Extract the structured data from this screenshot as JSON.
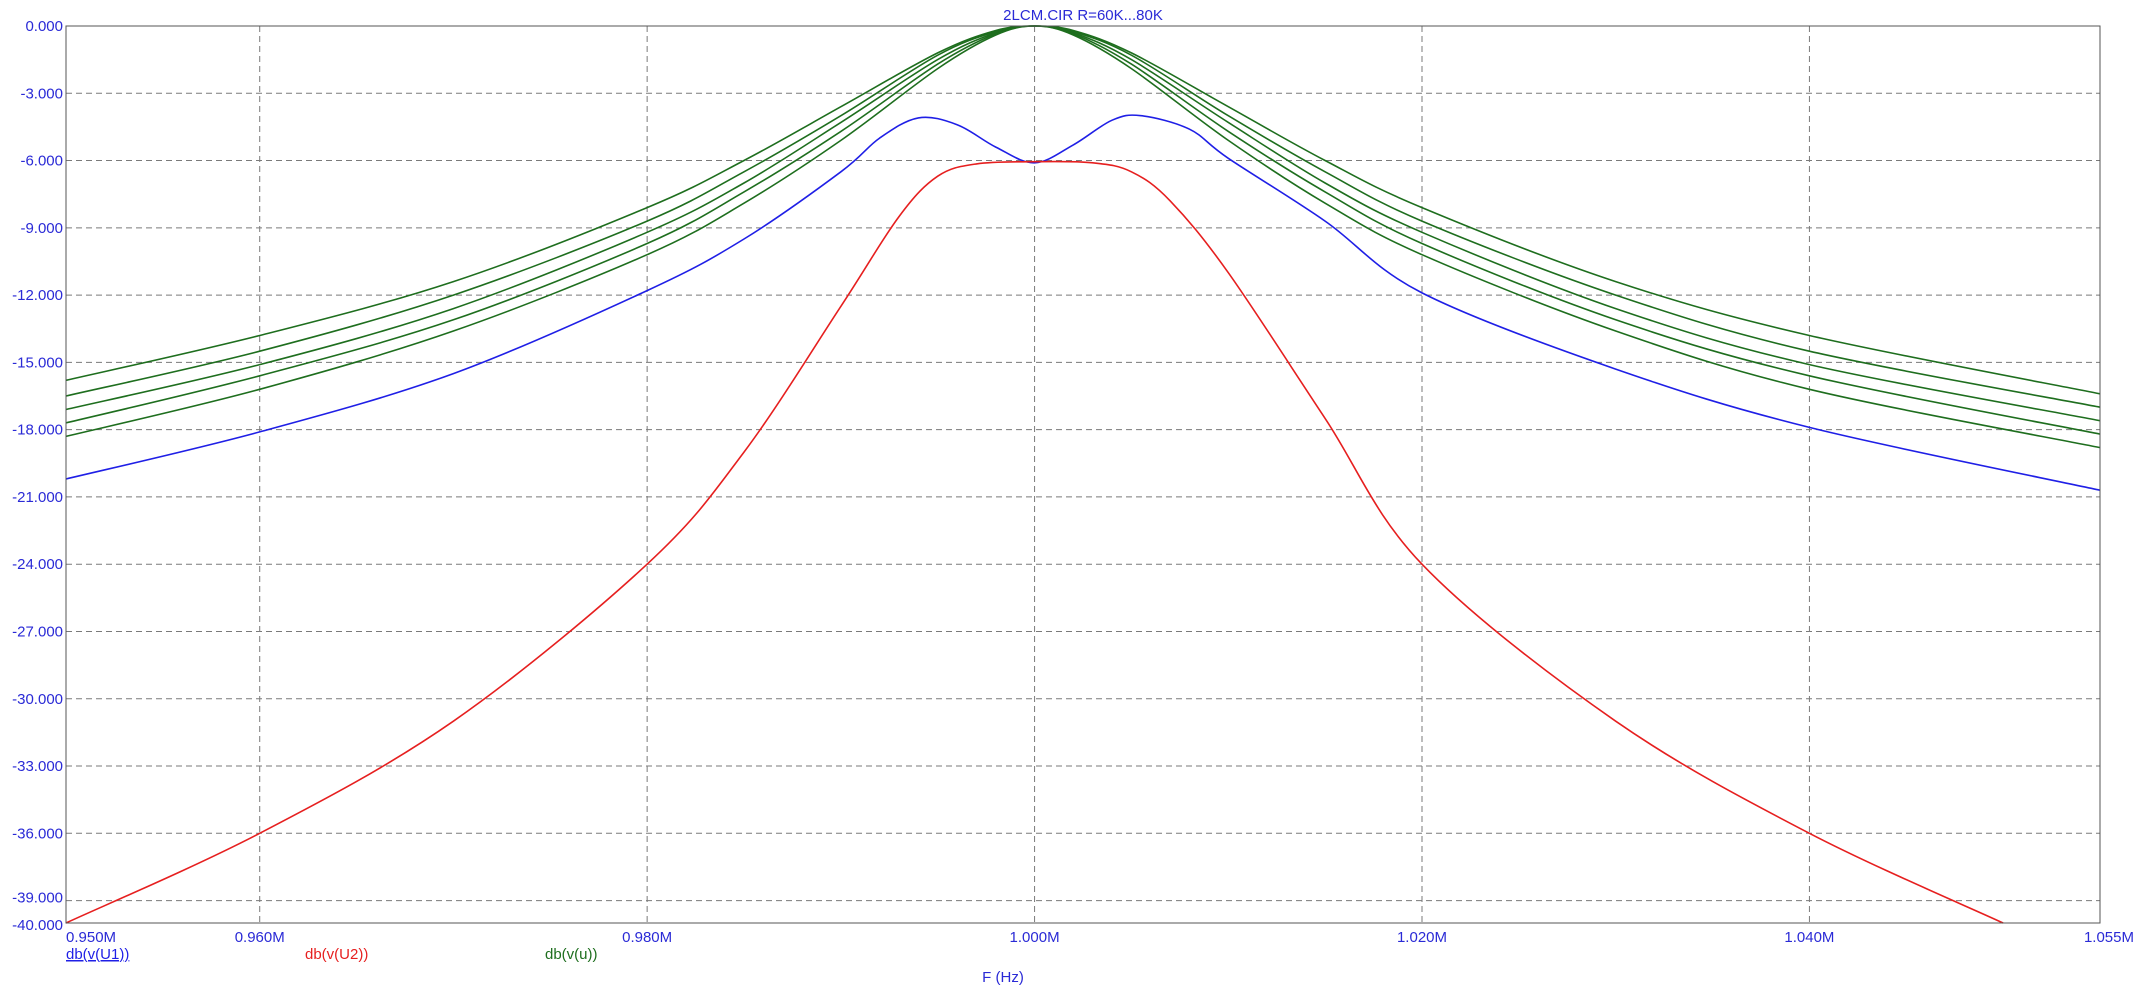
{
  "chart_data": {
    "type": "line",
    "title": "2LCM.CIR R=60K...80K",
    "xlabel": "F (Hz)",
    "ylabel": "",
    "xlim": [
      0.95,
      1.055
    ],
    "ylim": [
      -40,
      0
    ],
    "grid": true,
    "x_ticks": [
      {
        "value": 0.95,
        "label": "0.950M"
      },
      {
        "value": 0.96,
        "label": "0.960M"
      },
      {
        "value": 0.98,
        "label": "0.980M"
      },
      {
        "value": 1.0,
        "label": "1.000M"
      },
      {
        "value": 1.02,
        "label": "1.020M"
      },
      {
        "value": 1.04,
        "label": "1.040M"
      },
      {
        "value": 1.055,
        "label": "1.055M"
      }
    ],
    "y_ticks": [
      {
        "value": 0,
        "label": "0.000"
      },
      {
        "value": -3,
        "label": "-3.000"
      },
      {
        "value": -6,
        "label": "-6.000"
      },
      {
        "value": -9,
        "label": "-9.000"
      },
      {
        "value": -12,
        "label": "-12.000"
      },
      {
        "value": -15,
        "label": "-15.000"
      },
      {
        "value": -18,
        "label": "-18.000"
      },
      {
        "value": -21,
        "label": "-21.000"
      },
      {
        "value": -24,
        "label": "-24.000"
      },
      {
        "value": -27,
        "label": "-27.000"
      },
      {
        "value": -30,
        "label": "-30.000"
      },
      {
        "value": -33,
        "label": "-33.000"
      },
      {
        "value": -36,
        "label": "-36.000"
      },
      {
        "value": -39,
        "label": "-39.000"
      },
      {
        "value": -40,
        "label": "-40.000"
      }
    ],
    "legend": [
      {
        "label": "db(v(U1))",
        "color": "#1f1fe6",
        "underline": true
      },
      {
        "label": "db(v(U2))",
        "color": "#e61f1f",
        "underline": false
      },
      {
        "label": "db(v(u))",
        "color": "#1e6e1e",
        "underline": false
      }
    ],
    "series": [
      {
        "color": "#1f1fe6",
        "x": [
          0.95,
          0.96,
          0.97,
          0.98,
          0.985,
          0.99,
          0.992,
          0.994,
          0.996,
          0.998,
          1.0,
          1.002,
          1.004,
          1.0055,
          1.008,
          1.01,
          1.015,
          1.02,
          1.03,
          1.04,
          1.055
        ],
        "y": [
          -20.2,
          -18.1,
          -15.5,
          -11.8,
          -9.5,
          -6.5,
          -5.0,
          -4.1,
          -4.4,
          -5.4,
          -6.1,
          -5.3,
          -4.2,
          -4.0,
          -4.6,
          -5.9,
          -8.7,
          -11.9,
          -15.3,
          -17.9,
          -20.7
        ]
      },
      {
        "color": "#e61f1f",
        "x": [
          0.95,
          0.96,
          0.97,
          0.98,
          0.985,
          0.99,
          0.993,
          0.995,
          0.997,
          1.0,
          1.003,
          1.005,
          1.007,
          1.01,
          1.015,
          1.02,
          1.03,
          1.04,
          1.05
        ],
        "y": [
          -40.0,
          -36.0,
          -31.0,
          -24.0,
          -19.0,
          -12.5,
          -8.5,
          -6.7,
          -6.15,
          -6.05,
          -6.1,
          -6.5,
          -7.8,
          -11.0,
          -17.5,
          -24.0,
          -31.0,
          -36.0,
          -40.0
        ]
      },
      {
        "color": "#1e6e1e",
        "x": [
          0.95,
          0.96,
          0.97,
          0.98,
          0.985,
          0.99,
          0.995,
          0.998,
          1.0,
          1.002,
          1.005,
          1.01,
          1.015,
          1.02,
          1.03,
          1.04,
          1.055
        ],
        "y": [
          -15.8,
          -13.8,
          -11.4,
          -8.1,
          -6.0,
          -3.6,
          -1.2,
          -0.2,
          0.0,
          -0.2,
          -1.2,
          -3.6,
          -6.0,
          -8.1,
          -11.4,
          -13.8,
          -16.4
        ]
      },
      {
        "color": "#1e6e1e",
        "x": [
          0.95,
          0.96,
          0.97,
          0.98,
          0.985,
          0.99,
          0.995,
          0.998,
          1.0,
          1.002,
          1.005,
          1.01,
          1.015,
          1.02,
          1.03,
          1.04,
          1.055
        ],
        "y": [
          -16.5,
          -14.5,
          -12.0,
          -8.7,
          -6.5,
          -4.0,
          -1.3,
          -0.25,
          0.0,
          -0.25,
          -1.3,
          -4.0,
          -6.5,
          -8.7,
          -12.0,
          -14.5,
          -17.0
        ]
      },
      {
        "color": "#1e6e1e",
        "x": [
          0.95,
          0.96,
          0.97,
          0.98,
          0.985,
          0.99,
          0.995,
          0.998,
          1.0,
          1.002,
          1.005,
          1.01,
          1.015,
          1.02,
          1.03,
          1.04,
          1.055
        ],
        "y": [
          -17.1,
          -15.1,
          -12.6,
          -9.2,
          -7.0,
          -4.3,
          -1.5,
          -0.3,
          0.0,
          -0.3,
          -1.5,
          -4.3,
          -7.0,
          -9.2,
          -12.6,
          -15.1,
          -17.6
        ]
      },
      {
        "color": "#1e6e1e",
        "x": [
          0.95,
          0.96,
          0.97,
          0.98,
          0.985,
          0.99,
          0.995,
          0.998,
          1.0,
          1.002,
          1.005,
          1.01,
          1.015,
          1.02,
          1.03,
          1.04,
          1.055
        ],
        "y": [
          -17.7,
          -15.6,
          -13.1,
          -9.7,
          -7.4,
          -4.7,
          -1.7,
          -0.35,
          0.0,
          -0.35,
          -1.7,
          -4.7,
          -7.4,
          -9.7,
          -13.1,
          -15.6,
          -18.2
        ]
      },
      {
        "color": "#1e6e1e",
        "x": [
          0.95,
          0.96,
          0.97,
          0.98,
          0.985,
          0.99,
          0.995,
          0.998,
          1.0,
          1.002,
          1.005,
          1.01,
          1.015,
          1.02,
          1.03,
          1.04,
          1.055
        ],
        "y": [
          -18.3,
          -16.2,
          -13.6,
          -10.2,
          -7.9,
          -5.1,
          -1.9,
          -0.4,
          0.0,
          -0.4,
          -1.9,
          -5.1,
          -7.9,
          -10.2,
          -13.6,
          -16.2,
          -18.8
        ]
      }
    ]
  }
}
